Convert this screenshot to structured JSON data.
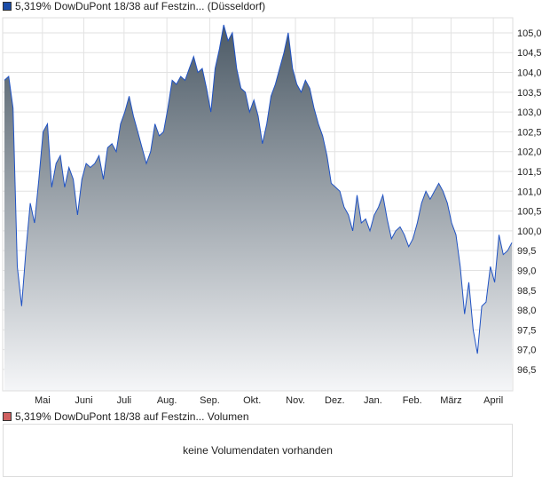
{
  "legend_price": {
    "label": "5,319% DowDuPont 18/38 auf Festzin... (Düsseldorf)",
    "color": "#1a4ca8"
  },
  "legend_volume": {
    "label": "5,319% DowDuPont 18/38 auf Festzin... Volumen",
    "color": "#d06060"
  },
  "volume_message": "keine Volumendaten vorhanden",
  "chart_data": {
    "type": "area",
    "title": "",
    "xlabel": "",
    "ylabel": "",
    "ylim": [
      95.96,
      105.38
    ],
    "yticks": [
      "96,5",
      "97,0",
      "97,5",
      "98,0",
      "98,5",
      "99,0",
      "99,5",
      "100,0",
      "100,5",
      "101,0",
      "101,5",
      "102,0",
      "102,5",
      "103,0",
      "103,5",
      "104,0",
      "104,5",
      "105,0"
    ],
    "ytick_values": [
      96.5,
      97,
      97.5,
      98,
      98.5,
      99,
      99.5,
      100,
      100.5,
      101,
      101.5,
      102,
      102.5,
      103,
      103.5,
      104,
      104.5,
      105
    ],
    "xticks": [
      "Mai",
      "Juni",
      "Juli",
      "Aug.",
      "Sep.",
      "Okt.",
      "Nov.",
      "Dez.",
      "Jan.",
      "Feb.",
      "März",
      "April"
    ],
    "xtick_positions": [
      0.078,
      0.159,
      0.238,
      0.322,
      0.406,
      0.489,
      0.574,
      0.651,
      0.726,
      0.803,
      0.879,
      0.962
    ],
    "grid": true,
    "line_color": "#1f52c4",
    "fill_top": "#4c5a66",
    "fill_bottom": "#f5f6f8",
    "values": [
      103.8,
      103.9,
      103.1,
      99.1,
      98.1,
      99.5,
      100.7,
      100.2,
      101.3,
      102.5,
      102.7,
      101.1,
      101.7,
      101.9,
      101.1,
      101.6,
      101.3,
      100.4,
      101.3,
      101.7,
      101.6,
      101.7,
      101.9,
      101.3,
      102.1,
      102.2,
      102.0,
      102.7,
      103.0,
      103.4,
      102.9,
      102.5,
      102.1,
      101.7,
      102.0,
      102.7,
      102.4,
      102.5,
      103.1,
      103.8,
      103.7,
      103.9,
      103.8,
      104.1,
      104.4,
      104.0,
      104.1,
      103.6,
      103.0,
      104.1,
      104.6,
      105.2,
      104.8,
      105.0,
      104.1,
      103.6,
      103.5,
      103.0,
      103.3,
      102.9,
      102.2,
      102.7,
      103.4,
      103.7,
      104.1,
      104.5,
      105.0,
      104.1,
      103.7,
      103.5,
      103.8,
      103.6,
      103.1,
      102.7,
      102.4,
      101.9,
      101.2,
      101.1,
      101.0,
      100.6,
      100.4,
      100.0,
      100.9,
      100.2,
      100.3,
      100.0,
      100.4,
      100.6,
      100.9,
      100.3,
      99.8,
      100.0,
      100.1,
      99.9,
      99.6,
      99.8,
      100.2,
      100.7,
      101.0,
      100.8,
      101.0,
      101.2,
      101.0,
      100.7,
      100.2,
      99.9,
      99.1,
      97.9,
      98.7,
      97.5,
      96.9,
      98.1,
      98.2,
      99.1,
      98.7,
      99.9,
      99.4,
      99.5,
      99.7
    ]
  }
}
